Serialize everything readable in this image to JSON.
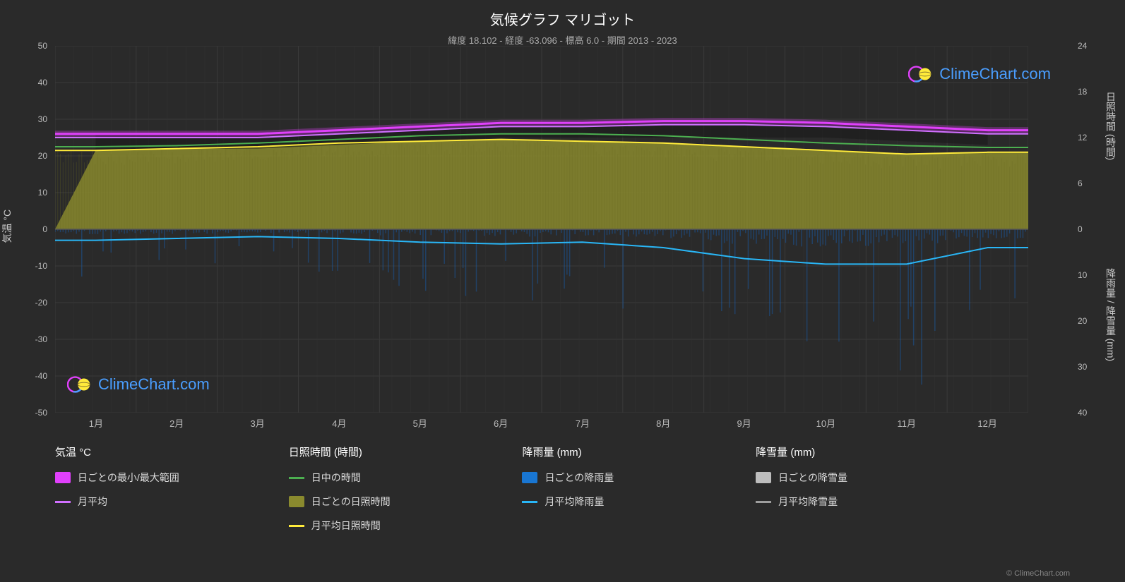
{
  "title": "気候グラフ マリゴット",
  "subtitle": "緯度 18.102 - 経度 -63.096 - 標高 6.0 - 期間 2013 - 2023",
  "chart": {
    "type": "climate-multi-axis",
    "background_color": "#2a2a2a",
    "plot_bg_color": "#2a2a2a",
    "grid_color": "#3a3a3a",
    "grid_minor_color": "#333333",
    "text_color": "#cccccc",
    "title_color": "#ffffff",
    "title_fontsize": 20,
    "subtitle_fontsize": 13,
    "x_axis": {
      "labels": [
        "1月",
        "2月",
        "3月",
        "4月",
        "5月",
        "6月",
        "7月",
        "8月",
        "9月",
        "10月",
        "11月",
        "12月"
      ],
      "positions": [
        0.042,
        0.125,
        0.208,
        0.292,
        0.375,
        0.458,
        0.542,
        0.625,
        0.708,
        0.792,
        0.875,
        0.958
      ]
    },
    "y_left": {
      "label": "気温 °C",
      "min": -50,
      "max": 50,
      "ticks": [
        50,
        40,
        30,
        20,
        10,
        0,
        -10,
        -20,
        -30,
        -40,
        -50
      ]
    },
    "y_right_top": {
      "label": "日照時間 (時間)",
      "min": 0,
      "max": 24,
      "ticks": [
        24,
        18,
        12,
        6,
        0
      ],
      "tick_positions": [
        0,
        0.125,
        0.25,
        0.375,
        0.5
      ]
    },
    "y_right_bottom": {
      "label": "降雨量 / 降雪量 (mm)",
      "min": 0,
      "max": 40,
      "ticks": [
        10,
        20,
        30,
        40
      ],
      "tick_positions": [
        0.625,
        0.75,
        0.875,
        1.0
      ]
    },
    "series": {
      "temp_max": {
        "color": "#e040fb",
        "glow": true,
        "values": [
          26,
          26,
          26,
          27,
          28,
          29,
          29,
          29.5,
          29.5,
          29,
          28,
          27
        ]
      },
      "temp_avg": {
        "color": "#d070ff",
        "values": [
          25,
          25,
          25,
          26,
          27,
          28,
          28,
          28.5,
          28.5,
          28,
          27,
          26
        ]
      },
      "temp_min": {
        "color": "#333333",
        "values": [
          22,
          22,
          22,
          23,
          24,
          25,
          25,
          25,
          25,
          25,
          24,
          23
        ]
      },
      "daylight": {
        "color": "#4caf50",
        "values": [
          22.5,
          22.8,
          23.5,
          24.5,
          25.5,
          26,
          26,
          25.5,
          24.5,
          23.5,
          22.8,
          22.3
        ]
      },
      "sunshine_avg": {
        "color": "#ffeb3b",
        "values": [
          21.5,
          22,
          22.5,
          23.5,
          24,
          24.5,
          24,
          23.5,
          22.5,
          21.5,
          20.5,
          21
        ]
      },
      "sunshine_fill": {
        "color": "#8a8a2e",
        "opacity": 0.85
      },
      "rain_avg": {
        "color": "#29b6f6",
        "values": [
          -3,
          -2.5,
          -2,
          -2.5,
          -3.5,
          -4,
          -3.5,
          -5,
          -8,
          -9.5,
          -9.5,
          -5
        ]
      },
      "rain_fill": {
        "color": "#1565c0",
        "opacity": 0.4
      },
      "snow_avg": {
        "color": "#9e9e9e",
        "values": [
          0,
          0,
          0,
          0,
          0,
          0,
          0,
          0,
          0,
          0,
          0,
          0
        ]
      }
    }
  },
  "legend": {
    "groups": [
      {
        "title": "気温 °C",
        "items": [
          {
            "type": "swatch",
            "color": "#e040fb",
            "label": "日ごとの最小/最大範囲"
          },
          {
            "type": "line",
            "color": "#d070ff",
            "label": "月平均"
          }
        ]
      },
      {
        "title": "日照時間 (時間)",
        "items": [
          {
            "type": "line",
            "color": "#4caf50",
            "label": "日中の時間"
          },
          {
            "type": "swatch",
            "color": "#8a8a2e",
            "label": "日ごとの日照時間"
          },
          {
            "type": "line",
            "color": "#ffeb3b",
            "label": "月平均日照時間"
          }
        ]
      },
      {
        "title": "降雨量 (mm)",
        "items": [
          {
            "type": "swatch",
            "color": "#1976d2",
            "label": "日ごとの降雨量"
          },
          {
            "type": "line",
            "color": "#29b6f6",
            "label": "月平均降雨量"
          }
        ]
      },
      {
        "title": "降雪量 (mm)",
        "items": [
          {
            "type": "swatch",
            "color": "#bdbdbd",
            "label": "日ごとの降雪量"
          },
          {
            "type": "line",
            "color": "#9e9e9e",
            "label": "月平均降雪量"
          }
        ]
      }
    ]
  },
  "watermark": "ClimeChart.com",
  "copyright": "© ClimeChart.com",
  "logo_colors": {
    "ring": "#e040fb",
    "ring2": "#4a9eff",
    "sphere": "#ffeb3b"
  }
}
